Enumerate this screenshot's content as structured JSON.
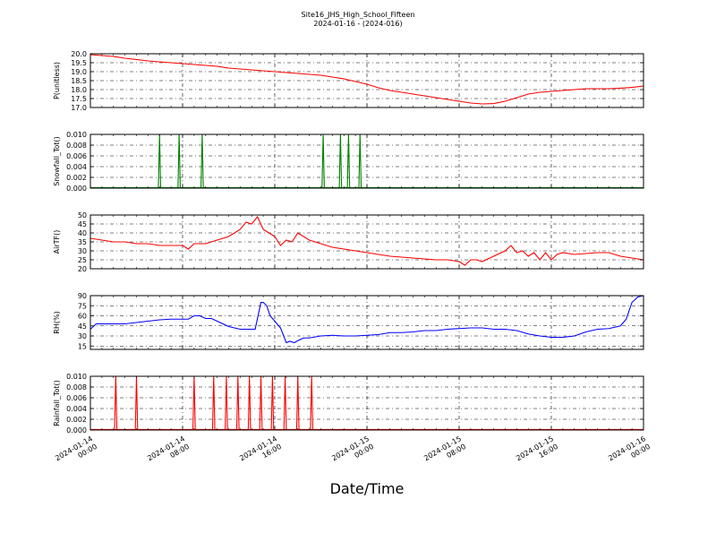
{
  "chart_data": {
    "title": "Site16_JHS_High_School_Fifteen",
    "subtitle": "2024-01-16 - (2024-016)",
    "xlabel": "Date/Time",
    "type": "line",
    "grid": true,
    "x_ticks": [
      "2024-01-14 00:00",
      "2024-01-14 08:00",
      "2024-01-14 16:00",
      "2024-01-15 00:00",
      "2024-01-15 08:00",
      "2024-01-15 16:00",
      "2024-01-16 00:00"
    ],
    "x_tick_lines": [
      [
        "2024-01-14",
        "00:00"
      ],
      [
        "2024-01-14",
        "08:00"
      ],
      [
        "2024-01-14",
        "16:00"
      ],
      [
        "2024-01-15",
        "00:00"
      ],
      [
        "2024-01-15",
        "08:00"
      ],
      [
        "2024-01-15",
        "16:00"
      ],
      [
        "2024-01-16",
        "00:00"
      ]
    ],
    "x_range_hours": [
      0,
      48
    ],
    "panels": [
      {
        "ylabel": "P(unitless)",
        "ylim": [
          17.0,
          20.0
        ],
        "yticks": [
          "20.0",
          "19.5",
          "19.0",
          "18.5",
          "18.0",
          "17.5",
          "17.0"
        ],
        "ytick_values": [
          20.0,
          19.5,
          19.0,
          18.5,
          18.0,
          17.5,
          17.0
        ],
        "color": "#ff0000",
        "series_kind": "line",
        "x_hours": [
          0,
          1,
          2,
          3,
          4,
          5,
          6,
          7,
          8,
          9,
          10,
          11,
          12,
          13,
          14,
          15,
          16,
          17,
          18,
          19,
          20,
          21,
          22,
          23,
          24,
          25,
          26,
          27,
          28,
          29,
          30,
          31,
          32,
          33,
          34,
          35,
          36,
          37,
          38,
          39,
          40,
          41,
          42,
          43,
          44,
          45,
          46,
          47,
          48
        ],
        "values": [
          19.95,
          19.9,
          19.85,
          19.75,
          19.68,
          19.6,
          19.55,
          19.5,
          19.45,
          19.4,
          19.35,
          19.3,
          19.2,
          19.15,
          19.1,
          19.05,
          19.0,
          18.95,
          18.9,
          18.85,
          18.8,
          18.7,
          18.6,
          18.45,
          18.3,
          18.1,
          17.95,
          17.85,
          17.75,
          17.65,
          17.55,
          17.45,
          17.35,
          17.25,
          17.2,
          17.22,
          17.35,
          17.55,
          17.75,
          17.85,
          17.9,
          17.95,
          18.0,
          18.05,
          18.05,
          18.05,
          18.08,
          18.12,
          18.2
        ]
      },
      {
        "ylabel": "Snowfall_Tot()",
        "ylim": [
          0.0,
          0.01
        ],
        "yticks": [
          "0.010",
          "0.008",
          "0.006",
          "0.004",
          "0.002",
          "0.000"
        ],
        "ytick_values": [
          0.01,
          0.008,
          0.006,
          0.004,
          0.002,
          0.0
        ],
        "color": "#008000",
        "series_kind": "spikes",
        "spike_hours": [
          6.0,
          7.7,
          9.7,
          20.2,
          21.7,
          22.4,
          23.4
        ],
        "spike_value": 0.01
      },
      {
        "ylabel": "AirTF()",
        "ylim": [
          20,
          50
        ],
        "yticks": [
          "50",
          "45",
          "40",
          "35",
          "30",
          "25",
          "20"
        ],
        "ytick_values": [
          50,
          45,
          40,
          35,
          30,
          25,
          20
        ],
        "color": "#ff0000",
        "series_kind": "line",
        "x_hours": [
          0,
          1,
          2,
          3,
          4,
          5,
          6,
          7,
          7.5,
          8,
          8.5,
          9,
          10,
          10.5,
          11,
          12,
          12.5,
          13,
          13.5,
          14,
          14.5,
          15,
          15.5,
          16,
          16.5,
          17,
          17.5,
          18,
          19,
          20,
          21,
          22,
          23,
          24,
          25,
          26,
          27,
          28,
          29,
          30,
          31,
          32,
          32.5,
          33,
          33.5,
          34,
          35,
          36,
          36.5,
          37,
          37.5,
          38,
          38.5,
          39,
          39.5,
          40,
          40.5,
          41,
          42,
          43,
          44,
          45,
          46,
          47,
          48
        ],
        "values": [
          37,
          36,
          35,
          35,
          34,
          34,
          33,
          33,
          33,
          33,
          31,
          34,
          34,
          35,
          36,
          38,
          40,
          42,
          46,
          45,
          49,
          42,
          40,
          38,
          33,
          36,
          35,
          40,
          36,
          34,
          32,
          31,
          30,
          29,
          28,
          27,
          26.5,
          26,
          25.5,
          25,
          25,
          24,
          22,
          25,
          25,
          24,
          27,
          30,
          33,
          29,
          30,
          27,
          29,
          25,
          29,
          25,
          28,
          29,
          28,
          28.5,
          29,
          29,
          27,
          26,
          25
        ]
      },
      {
        "ylabel": "RH(%)",
        "ylim": [
          10,
          90
        ],
        "yticks": [
          "90",
          "75",
          "60",
          "45",
          "30",
          "15"
        ],
        "ytick_values": [
          90,
          75,
          60,
          45,
          30,
          15
        ],
        "color": "#0000ff",
        "series_kind": "line",
        "x_hours": [
          0,
          0.5,
          1,
          2,
          3,
          4,
          5,
          6,
          7,
          8,
          8.5,
          9,
          9.5,
          10,
          10.5,
          11,
          12,
          13,
          14,
          14.3,
          14.8,
          15,
          15.3,
          15.6,
          16,
          16.5,
          17,
          17.3,
          17.7,
          18,
          18.5,
          19,
          20,
          21,
          22,
          23,
          24,
          25,
          26,
          27,
          28,
          29,
          30,
          31,
          32,
          33,
          34,
          35,
          36,
          37,
          38,
          39,
          40,
          41,
          42,
          43,
          44,
          45,
          46,
          46.5,
          47,
          47.5,
          48
        ],
        "values": [
          40,
          48,
          48,
          48,
          48,
          50,
          52,
          54,
          55,
          55,
          55,
          60,
          60,
          56,
          56,
          52,
          44,
          40,
          40,
          40,
          80,
          80,
          75,
          60,
          52,
          42,
          20,
          22,
          20,
          23,
          27,
          27,
          30,
          31,
          30,
          30,
          31,
          32,
          35,
          35,
          36,
          38,
          38,
          40,
          41,
          42,
          42,
          40,
          40,
          38,
          33,
          30,
          28,
          28,
          30,
          36,
          40,
          41,
          45,
          55,
          80,
          88,
          90
        ]
      },
      {
        "ylabel": "Rainfall_Tot()",
        "ylim": [
          0.0,
          0.01
        ],
        "yticks": [
          "0.010",
          "0.008",
          "0.006",
          "0.004",
          "0.002",
          "0.000"
        ],
        "ytick_values": [
          0.01,
          0.008,
          0.006,
          0.004,
          0.002,
          0.0
        ],
        "color": "#ff0000",
        "series_kind": "spikes",
        "spike_hours": [
          2.2,
          4.0,
          9.0,
          10.7,
          11.8,
          12.8,
          13.8,
          14.8,
          15.8,
          16.9,
          18.0,
          19.2
        ],
        "spike_value": 0.01
      }
    ]
  }
}
